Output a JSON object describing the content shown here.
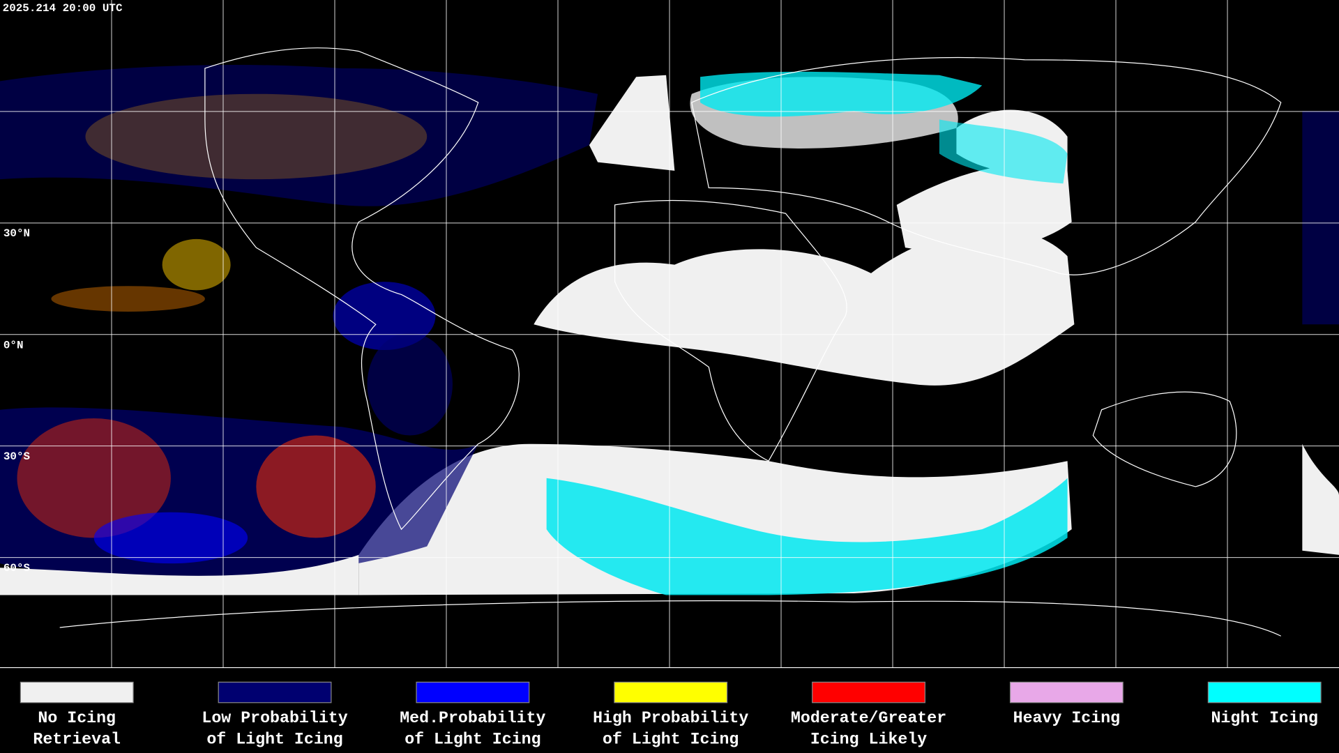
{
  "timestamp": "2025.214 20:00 UTC",
  "lat_labels": [
    "30°N",
    "0°N",
    "30°S",
    "60°S"
  ],
  "legend": [
    {
      "lines": [
        "No Icing",
        "Retrieval"
      ],
      "color": "#f0f0f0"
    },
    {
      "lines": [
        "Low Probability",
        "of Light Icing"
      ],
      "color": "#000070"
    },
    {
      "lines": [
        "Med.Probability",
        "of Light Icing"
      ],
      "color": "#0000ff"
    },
    {
      "lines": [
        "High Probability",
        "of Light Icing"
      ],
      "color": "#ffff00"
    },
    {
      "lines": [
        "Moderate/Greater",
        "Icing Likely"
      ],
      "color": "#ff0000"
    },
    {
      "lines": [
        "Heavy Icing"
      ],
      "color": "#e8a8e8"
    },
    {
      "lines": [
        "Night Icing"
      ],
      "color": "#00ffff"
    }
  ]
}
